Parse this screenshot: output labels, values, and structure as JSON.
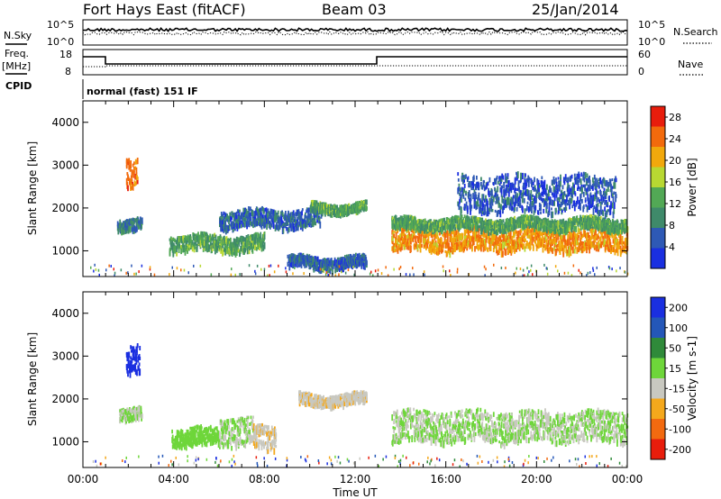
{
  "header": {
    "station": "Fort Hays East (fitACF)",
    "beam": "Beam 03",
    "date": "25/Jan/2014"
  },
  "labels": {
    "nsky": "N.Sky",
    "nsearch": "N.Search",
    "freq_top": "Freq.",
    "freq_unit": "[MHz]",
    "cpid": "CPID",
    "nave": "Nave",
    "cpid_value": "normal (fast) 151 IF"
  },
  "noise_ticks_left": [
    "10^5",
    "10^0"
  ],
  "noise_ticks_right": [
    "10^5",
    "10^0"
  ],
  "freq_ticks": [
    "18",
    "8"
  ],
  "nave_ticks": [
    "60",
    "0"
  ],
  "colors": {
    "power_scale": [
      "#1a2fe0",
      "#2e59b5",
      "#3f8a6a",
      "#52a855",
      "#b8d832",
      "#f1a80c",
      "#f26a0c",
      "#e81d0c"
    ],
    "velocity_scale": [
      "#1a2fe0",
      "#2457b8",
      "#2f8a3a",
      "#6ed63a",
      "#c8c8c0",
      "#f4a81c",
      "#f26a10",
      "#e81d0c"
    ]
  },
  "chart_data": [
    {
      "type": "heatmap",
      "title": "",
      "xlabel": "",
      "ylabel": "Slant Range [km]",
      "x_ticks": [
        "00:00",
        "04:00",
        "08:00",
        "12:00",
        "16:00",
        "20:00",
        "00:00"
      ],
      "y_ticks": [
        1000,
        2000,
        3000,
        4000
      ],
      "ylim": [
        400,
        4500
      ],
      "colorbar": {
        "label": "Power [dB]",
        "ticks": [
          4,
          8,
          12,
          16,
          20,
          24,
          28
        ],
        "range": [
          0,
          30
        ]
      },
      "regions": [
        {
          "t0": 1.9,
          "t1": 2.4,
          "r0": 2550,
          "r1": 3250,
          "value": 24
        },
        {
          "t0": 1.5,
          "t1": 2.6,
          "r0": 1550,
          "r1": 1800,
          "value": 8
        },
        {
          "t0": 3.8,
          "t1": 8.0,
          "r0": 1050,
          "r1": 1400,
          "value": 12
        },
        {
          "t0": 6.0,
          "t1": 10.5,
          "r0": 1600,
          "r1": 2000,
          "value": 6
        },
        {
          "t0": 10.0,
          "t1": 12.5,
          "r0": 1950,
          "r1": 2150,
          "value": 12
        },
        {
          "t0": 9.0,
          "t1": 12.5,
          "r0": 650,
          "r1": 900,
          "value": 6
        },
        {
          "t0": 13.6,
          "t1": 24.0,
          "r0": 1050,
          "r1": 1550,
          "value": 22
        },
        {
          "t0": 13.6,
          "t1": 24.0,
          "r0": 1550,
          "r1": 1800,
          "value": 12
        },
        {
          "t0": 16.5,
          "t1": 23.5,
          "r0": 1950,
          "r1": 2800,
          "value": 5
        }
      ]
    },
    {
      "type": "heatmap",
      "title": "",
      "xlabel": "Time UT",
      "ylabel": "Slant Range [km]",
      "x_ticks": [
        "00:00",
        "04:00",
        "08:00",
        "12:00",
        "16:00",
        "20:00",
        "00:00"
      ],
      "y_ticks": [
        1000,
        2000,
        3000,
        4000
      ],
      "ylim": [
        400,
        4500
      ],
      "colorbar": {
        "label": "Velocity [m s-1]",
        "ticks": [
          200,
          100,
          50,
          15,
          -15,
          -50,
          -100,
          -200
        ],
        "range": [
          -250,
          250
        ]
      },
      "regions": [
        {
          "t0": 1.9,
          "t1": 2.5,
          "r0": 2700,
          "r1": 3350,
          "value": 200
        },
        {
          "t0": 1.6,
          "t1": 2.6,
          "r0": 1600,
          "r1": 1850,
          "value": 0
        },
        {
          "t0": 3.9,
          "t1": 6.0,
          "r0": 950,
          "r1": 1350,
          "value": 40
        },
        {
          "t0": 6.0,
          "t1": 7.5,
          "r0": 950,
          "r1": 1600,
          "value": 0
        },
        {
          "t0": 7.5,
          "t1": 8.5,
          "r0": 900,
          "r1": 1450,
          "value": -60
        },
        {
          "t0": 9.5,
          "t1": 12.5,
          "r0": 1900,
          "r1": 2150,
          "value": -60
        },
        {
          "t0": 13.6,
          "t1": 24.0,
          "r0": 1050,
          "r1": 1750,
          "value": 0
        }
      ]
    }
  ]
}
